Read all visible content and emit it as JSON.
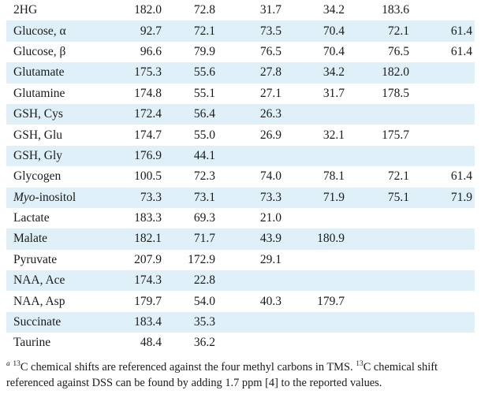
{
  "table": {
    "rows": [
      {
        "name": "2HG",
        "values": [
          "182.0",
          "72.8",
          "31.7",
          "34.2",
          "183.6",
          ""
        ]
      },
      {
        "name": "Glucose, α",
        "values": [
          "92.7",
          "72.1",
          "73.5",
          "70.4",
          "72.1",
          "61.4"
        ]
      },
      {
        "name": "Glucose, β",
        "values": [
          "96.6",
          "79.9",
          "76.5",
          "70.4",
          "76.5",
          "61.4"
        ]
      },
      {
        "name": "Glutamate",
        "values": [
          "175.3",
          "55.6",
          "27.8",
          "34.2",
          "182.0",
          ""
        ]
      },
      {
        "name": "Glutamine",
        "values": [
          "174.8",
          "55.1",
          "27.1",
          "31.7",
          "178.5",
          ""
        ]
      },
      {
        "name": "GSH, Cys",
        "values": [
          "172.4",
          "56.4",
          "26.3",
          "",
          "",
          ""
        ]
      },
      {
        "name": "GSH, Glu",
        "values": [
          "174.7",
          "55.0",
          "26.9",
          "32.1",
          "175.7",
          ""
        ]
      },
      {
        "name": "GSH, Gly",
        "values": [
          "176.9",
          "44.1",
          "",
          "",
          "",
          ""
        ]
      },
      {
        "name": "Glycogen",
        "values": [
          "100.5",
          "72.3",
          "74.0",
          "78.1",
          "72.1",
          "61.4"
        ]
      },
      {
        "name_italic": "Myo",
        "name": "-inositol",
        "values": [
          "73.3",
          "73.1",
          "73.3",
          "71.9",
          "75.1",
          "71.9"
        ]
      },
      {
        "name": "Lactate",
        "values": [
          "183.3",
          "69.3",
          "21.0",
          "",
          "",
          ""
        ]
      },
      {
        "name": "Malate",
        "values": [
          "182.1",
          "71.7",
          "43.9",
          "180.9",
          "",
          ""
        ]
      },
      {
        "name": "Pyruvate",
        "values": [
          "207.9",
          "172.9",
          "29.1",
          "",
          "",
          ""
        ]
      },
      {
        "name": "NAA, Ace",
        "values": [
          "174.3",
          "22.8",
          "",
          "",
          "",
          ""
        ]
      },
      {
        "name": "NAA, Asp",
        "values": [
          "179.7",
          "54.0",
          "40.3",
          "179.7",
          "",
          ""
        ]
      },
      {
        "name": "Succinate",
        "values": [
          "183.4",
          "35.3",
          "",
          "",
          "",
          ""
        ]
      },
      {
        "name": "Taurine",
        "values": [
          "48.4",
          "36.2",
          "",
          "",
          "",
          ""
        ]
      }
    ]
  },
  "footnote": {
    "marker": "a",
    "sup1": "13",
    "text1": "C chemical shifts are referenced against the four methyl carbons in TMS. ",
    "sup2": "13",
    "text2": "C chemical shift referenced against DSS can be found by adding 1.7 ppm [4] to the reported values."
  },
  "colors": {
    "row_shade": "#dff0f8",
    "text": "#1a1a1a",
    "background": "#ffffff"
  }
}
